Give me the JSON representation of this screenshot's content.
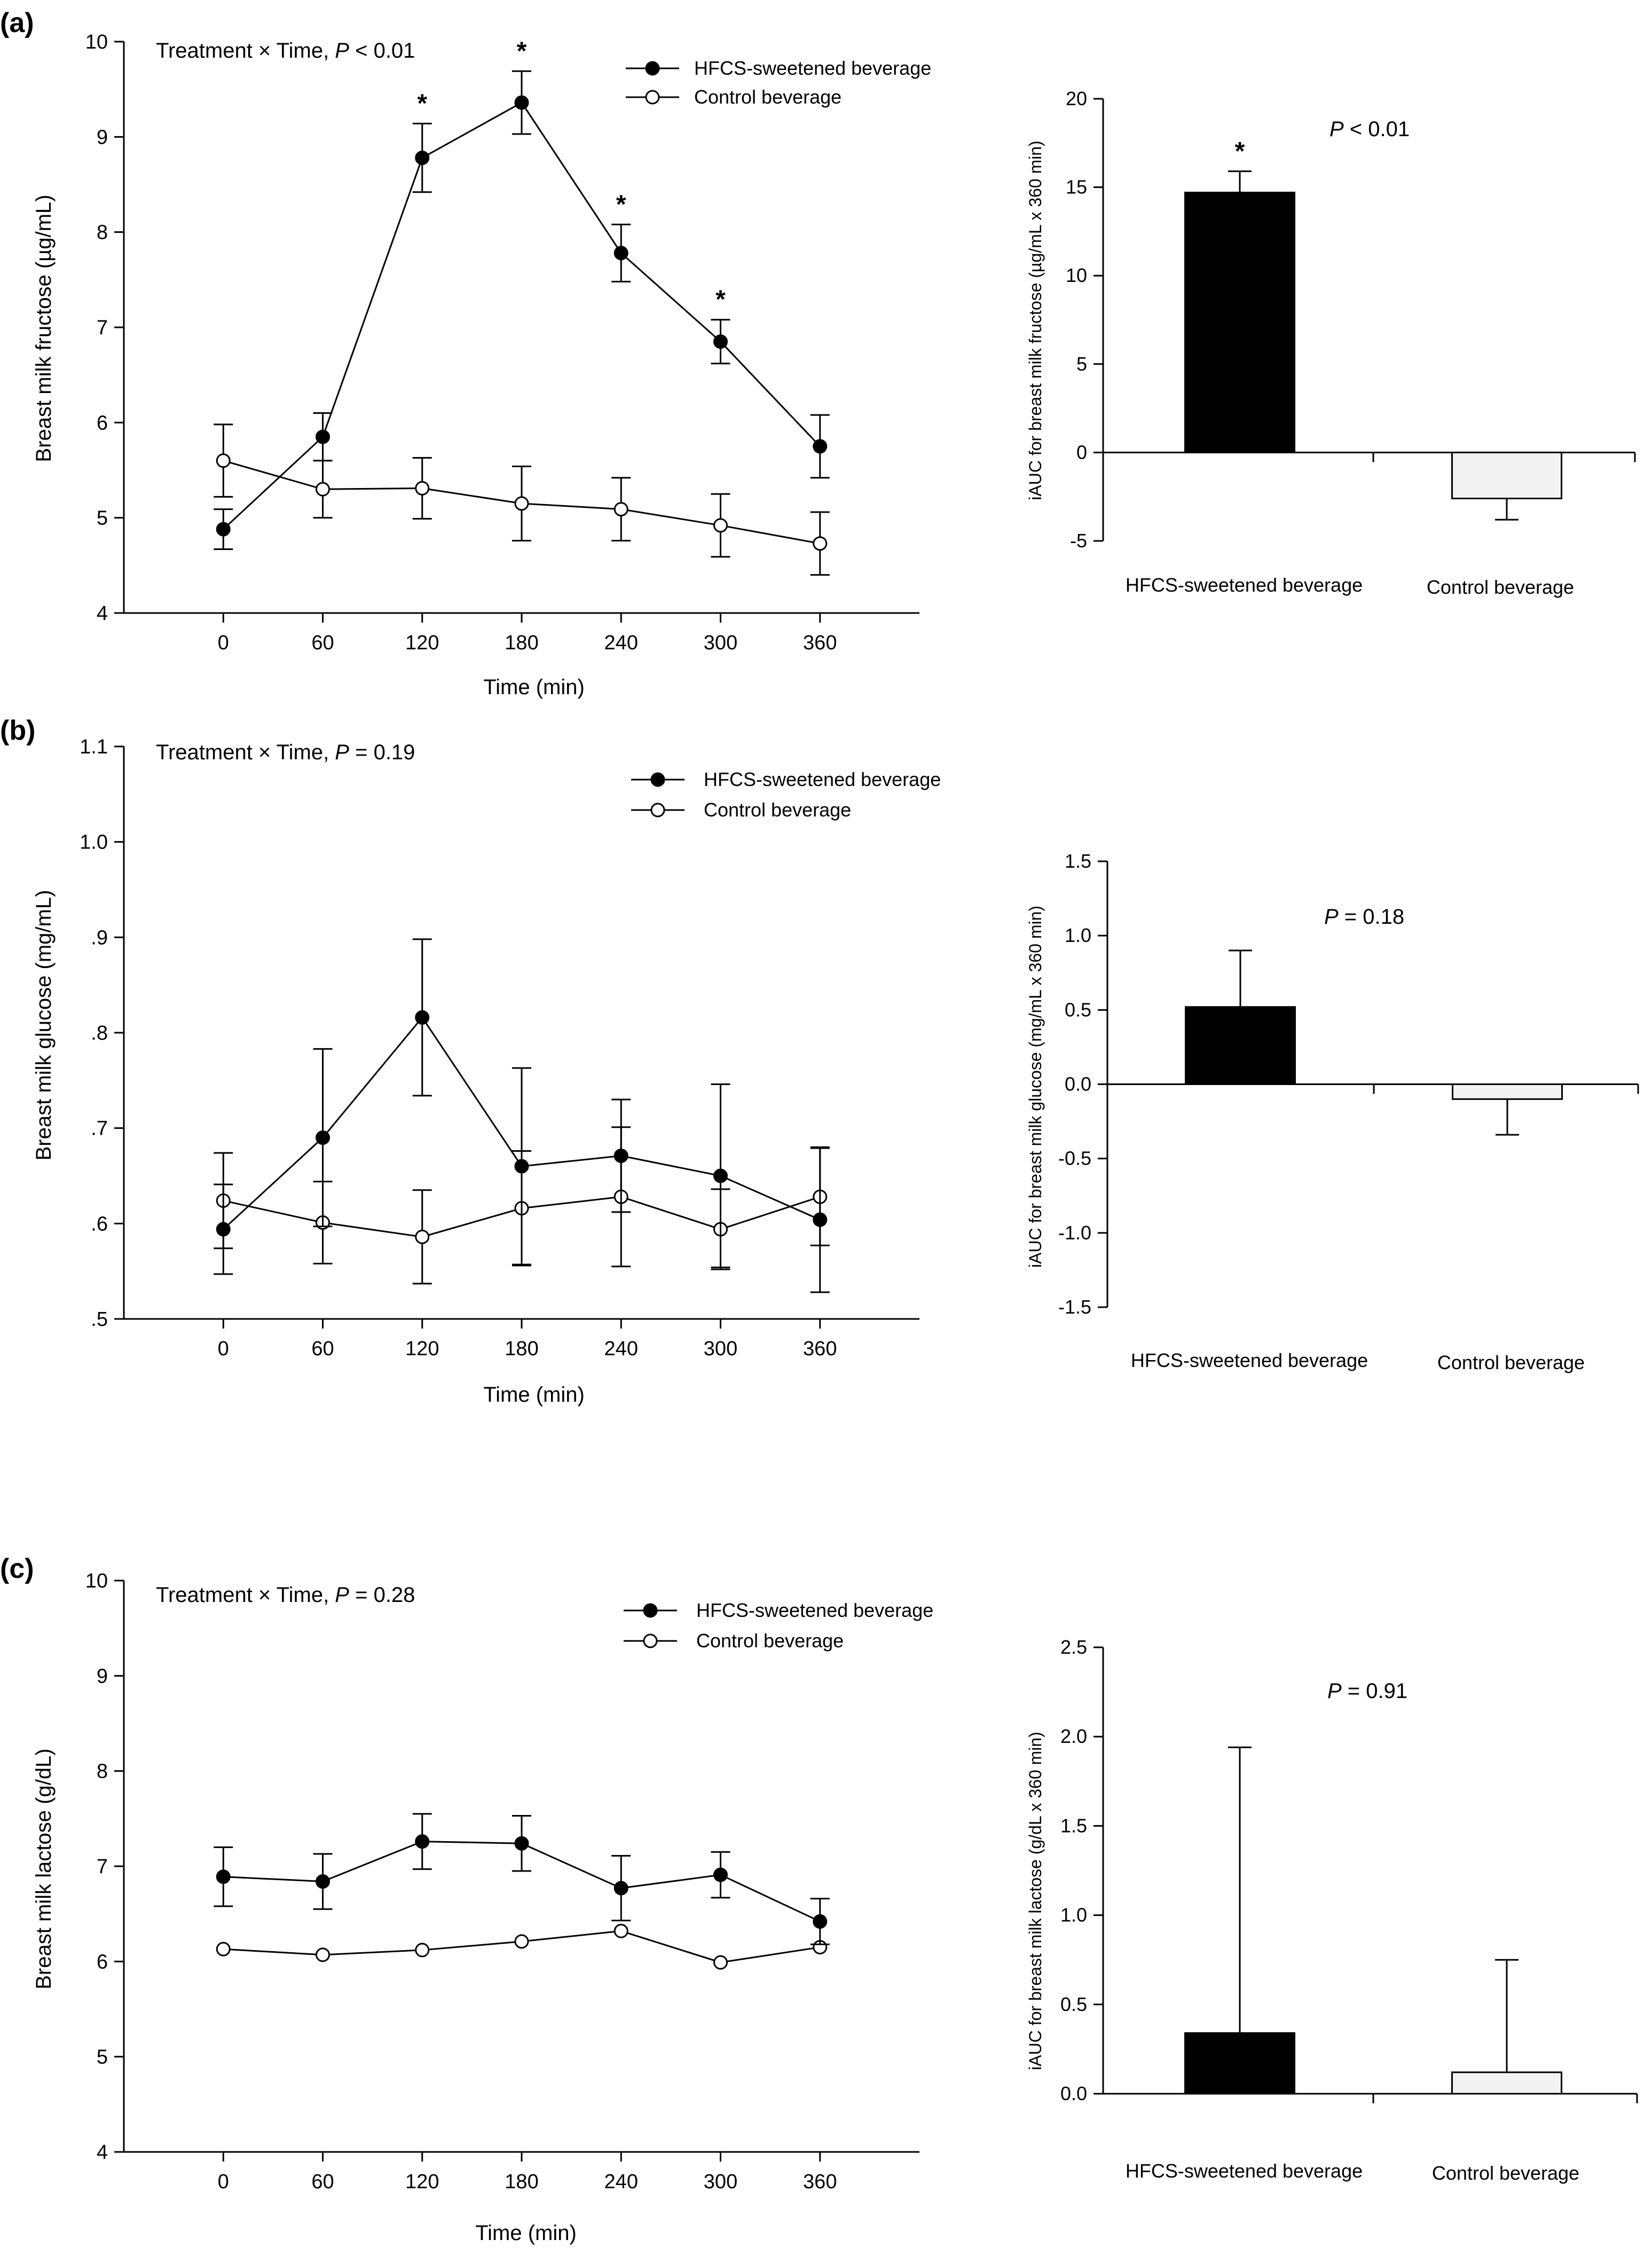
{
  "figure": {
    "panels": [
      {
        "label": "(a)",
        "line": {
          "annotation_prefix": "Treatment × Time, ",
          "annotation_p_italic": "P",
          "annotation_suffix": " < 0.01",
          "ylabel": "Breast milk fructose (µg/mL)",
          "xlabel": "Time (min)",
          "y_ticks": [
            "4",
            "5",
            "6",
            "7",
            "8",
            "9",
            "10"
          ],
          "x_ticks": [
            "0",
            "60",
            "120",
            "180",
            "240",
            "300",
            "360"
          ]
        },
        "bar": {
          "annotation_p_italic": "P",
          "annotation_suffix": " < 0.01",
          "ylabel": "iAUC for breast milk fructose (µg/mL x 360 min)",
          "y_ticks": [
            "-5",
            "0",
            "5",
            "10",
            "15",
            "20"
          ]
        }
      },
      {
        "label": "(b)",
        "line": {
          "annotation_prefix": "Treatment × Time, ",
          "annotation_p_italic": "P",
          "annotation_suffix": " = 0.19",
          "ylabel": "Breast milk glucose (mg/mL)",
          "xlabel": "Time (min)",
          "y_ticks": [
            ".5",
            ".6",
            ".7",
            ".8",
            ".9",
            "1.0",
            "1.1"
          ],
          "x_ticks": [
            "0",
            "60",
            "120",
            "180",
            "240",
            "300",
            "360"
          ]
        },
        "bar": {
          "annotation_p_italic": "P",
          "annotation_suffix": " = 0.18",
          "ylabel": "iAUC for breast milk glucose (mg/mL x 360 min)",
          "y_ticks": [
            "-1.5",
            "-1.0",
            "-0.5",
            "0.0",
            "0.5",
            "1.0",
            "1.5"
          ]
        }
      },
      {
        "label": "(c)",
        "line": {
          "annotation_prefix": "Treatment × Time, ",
          "annotation_p_italic": "P",
          "annotation_suffix": " = 0.28",
          "ylabel": "Breast milk lactose (g/dL)",
          "xlabel": "Time (min)",
          "y_ticks": [
            "4",
            "5",
            "6",
            "7",
            "8",
            "9",
            "10"
          ],
          "x_ticks": [
            "0",
            "60",
            "120",
            "180",
            "240",
            "300",
            "360"
          ]
        },
        "bar": {
          "annotation_p_italic": "P",
          "annotation_suffix": " = 0.91",
          "ylabel": "iAUC for breast milk lactose (g/dL x 360 min)",
          "y_ticks": [
            "0.0",
            "0.5",
            "1.0",
            "1.5",
            "2.0",
            "2.5"
          ]
        }
      }
    ],
    "legend": {
      "hfcs_label": "HFCS-sweetened beverage",
      "control_label": "Control beverage"
    },
    "significance_marker": "*",
    "colors": {
      "hfcs": "#000000",
      "control": "#ffffff",
      "control_bar": "#f2f2f2",
      "axis": "#000000"
    }
  },
  "chart_data": [
    {
      "id": "a-line",
      "type": "line",
      "title": "Treatment × Time, P < 0.01",
      "xlabel": "Time (min)",
      "ylabel": "Breast milk fructose (µg/mL)",
      "x": [
        0,
        60,
        120,
        180,
        240,
        300,
        360
      ],
      "xlim": [
        -60,
        420
      ],
      "ylim": [
        4,
        10
      ],
      "series": [
        {
          "name": "HFCS-sweetened beverage",
          "values": [
            4.88,
            5.85,
            8.78,
            9.36,
            7.78,
            6.85,
            5.75
          ],
          "errors": [
            0.21,
            0.25,
            0.36,
            0.33,
            0.3,
            0.23,
            0.33
          ],
          "significant": [
            false,
            false,
            true,
            true,
            true,
            true,
            false
          ]
        },
        {
          "name": "Control beverage",
          "values": [
            5.6,
            5.3,
            5.31,
            5.15,
            5.09,
            4.92,
            4.73
          ],
          "errors": [
            0.38,
            0.3,
            0.32,
            0.39,
            0.33,
            0.33,
            0.33
          ]
        }
      ]
    },
    {
      "id": "a-bar",
      "type": "bar",
      "title": "P < 0.01",
      "ylabel": "iAUC for breast milk fructose (µg/mL x 360 min)",
      "categories": [
        "HFCS-sweetened beverage",
        "Control beverage"
      ],
      "values": [
        14.7,
        -2.6
      ],
      "errors": [
        1.2,
        1.2
      ],
      "significant": [
        true,
        false
      ],
      "ylim": [
        -5,
        20
      ]
    },
    {
      "id": "b-line",
      "type": "line",
      "title": "Treatment × Time, P = 0.19",
      "xlabel": "Time (min)",
      "ylabel": "Breast milk glucose (mg/mL)",
      "x": [
        0,
        60,
        120,
        180,
        240,
        300,
        360
      ],
      "xlim": [
        -60,
        420
      ],
      "ylim": [
        0.5,
        1.1
      ],
      "series": [
        {
          "name": "HFCS-sweetened beverage",
          "values": [
            0.594,
            0.69,
            0.816,
            0.66,
            0.671,
            0.65,
            0.604
          ],
          "errors": [
            0.047,
            0.093,
            0.082,
            0.103,
            0.059,
            0.096,
            0.076
          ]
        },
        {
          "name": "Control beverage",
          "values": [
            0.624,
            0.601,
            0.586,
            0.616,
            0.628,
            0.594,
            0.628
          ],
          "errors": [
            0.05,
            0.043,
            0.049,
            0.06,
            0.073,
            0.042,
            0.051
          ]
        }
      ]
    },
    {
      "id": "b-bar",
      "type": "bar",
      "title": "P = 0.18",
      "ylabel": "iAUC for breast milk glucose (mg/mL x 360 min)",
      "categories": [
        "HFCS-sweetened beverage",
        "Control beverage"
      ],
      "values": [
        0.52,
        -0.1
      ],
      "errors": [
        0.38,
        0.24
      ],
      "ylim": [
        -1.5,
        1.5
      ]
    },
    {
      "id": "c-line",
      "type": "line",
      "title": "Treatment × Time, P = 0.28",
      "xlabel": "Time (min)",
      "ylabel": "Breast milk lactose (g/dL)",
      "x": [
        0,
        60,
        120,
        180,
        240,
        300,
        360
      ],
      "xlim": [
        -60,
        420
      ],
      "ylim": [
        4,
        10
      ],
      "series": [
        {
          "name": "HFCS-sweetened beverage",
          "values": [
            6.89,
            6.84,
            7.26,
            7.24,
            6.77,
            6.91,
            6.42
          ],
          "errors": [
            0.31,
            0.29,
            0.29,
            0.29,
            0.34,
            0.24,
            0.24
          ]
        },
        {
          "name": "Control beverage",
          "values": [
            6.13,
            6.07,
            6.12,
            6.21,
            6.32,
            5.99,
            6.15
          ]
        }
      ]
    },
    {
      "id": "c-bar",
      "type": "bar",
      "title": "P = 0.91",
      "ylabel": "iAUC for breast milk lactose (g/dL x 360 min)",
      "categories": [
        "HFCS-sweetened beverage",
        "Control beverage"
      ],
      "values": [
        0.34,
        0.12
      ],
      "errors": [
        1.6,
        0.63
      ],
      "ylim": [
        0,
        2.5
      ]
    }
  ]
}
